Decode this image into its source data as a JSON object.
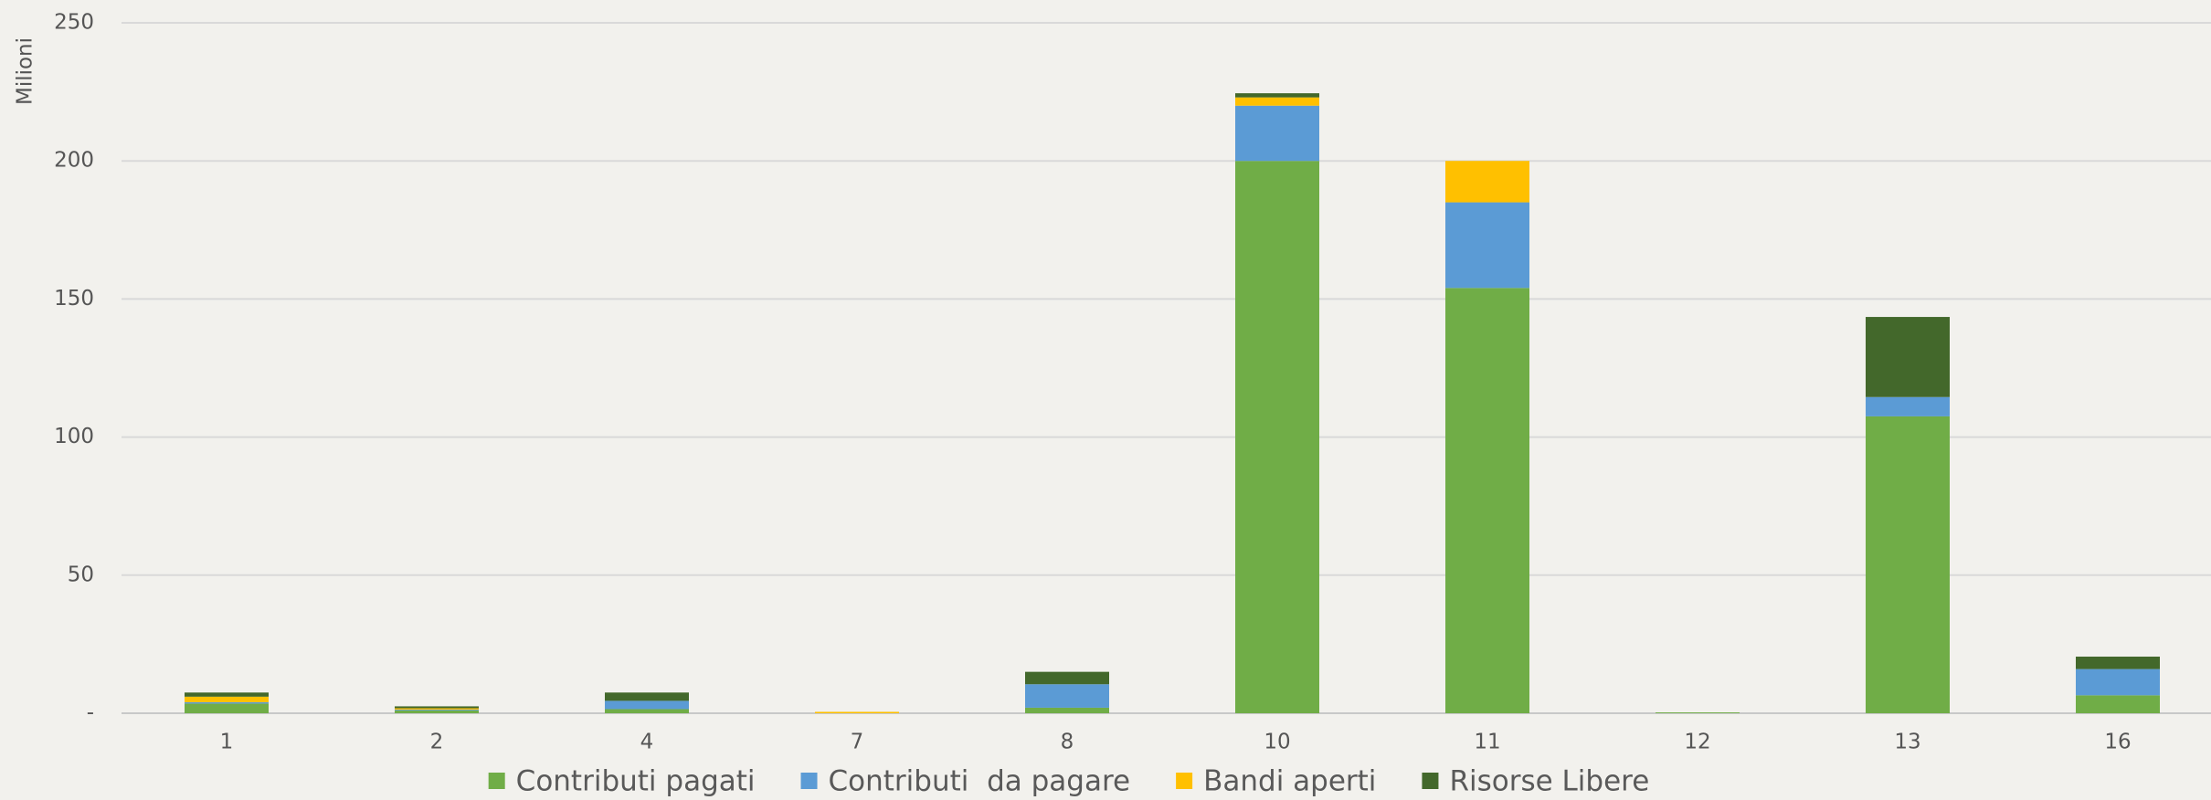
{
  "chart_data": {
    "type": "stacked_bar",
    "y_label": "Milioni",
    "categories": [
      "1",
      "2",
      "4",
      "7",
      "8",
      "10",
      "11",
      "12",
      "13",
      "16"
    ],
    "series": [
      {
        "name": "Contributi pagati",
        "color": "#70ad47",
        "values": [
          3.5,
          1,
          1.5,
          0,
          2,
          200,
          154,
          0.3,
          107.5,
          6.5
        ]
      },
      {
        "name": "Contributi  da pagare",
        "color": "#5b9bd5",
        "values": [
          0.5,
          0.3,
          3,
          0,
          8.5,
          20,
          31,
          0,
          7,
          9.5
        ]
      },
      {
        "name": "Bandi aperti",
        "color": "#ffc000",
        "values": [
          2,
          0.5,
          0,
          0.5,
          0,
          3,
          15,
          0,
          0,
          0
        ]
      },
      {
        "name": "Risorse Libere",
        "color": "#43682b",
        "values": [
          1.5,
          0.7,
          3,
          0,
          4.5,
          1.5,
          0,
          0,
          29,
          4.5
        ]
      }
    ],
    "ylim": [
      0,
      250
    ],
    "yticks": [
      {
        "value": 0,
        "label": "-"
      },
      50,
      100,
      150,
      200,
      250
    ],
    "grid": true,
    "legend": "bottom"
  }
}
